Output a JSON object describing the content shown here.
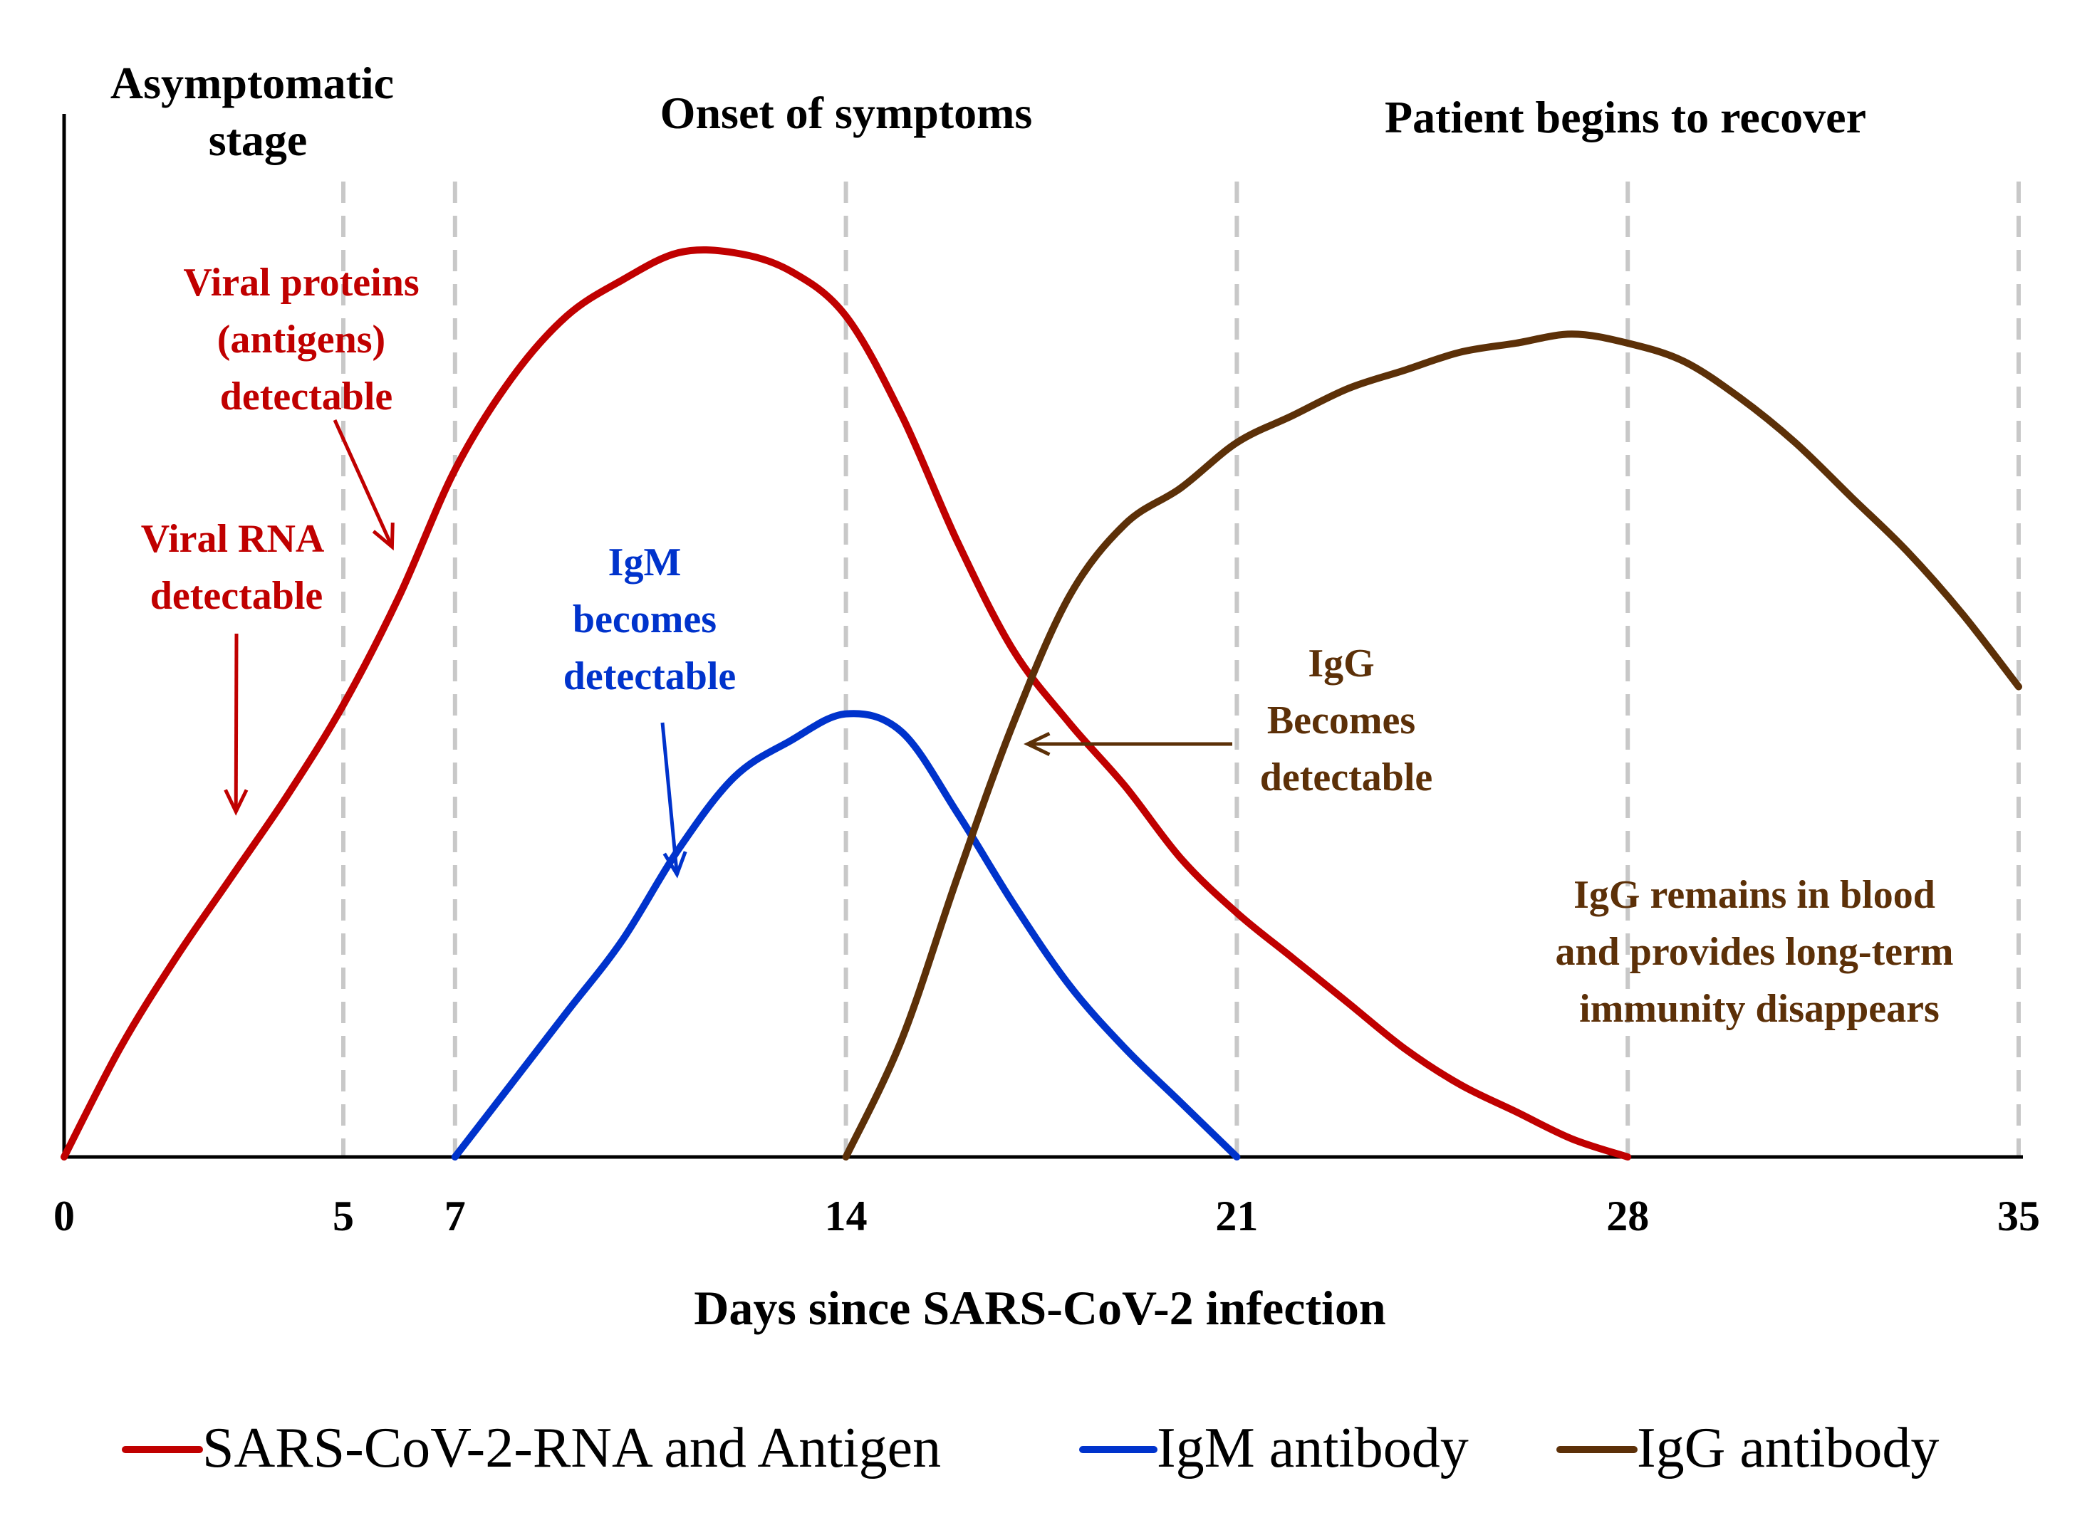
{
  "chart_data": {
    "type": "line",
    "xlabel": "Days since SARS-CoV-2 infection",
    "ylabel": "",
    "xlim": [
      0,
      35
    ],
    "ylim": [
      0,
      100
    ],
    "x_ticks": [
      0,
      5,
      7,
      14,
      21,
      28,
      35
    ],
    "x_tick_labels": [
      "0",
      "5",
      "7",
      "14",
      "21",
      "28",
      "35"
    ],
    "guide_lines_x": [
      5,
      7,
      14,
      21,
      28,
      35
    ],
    "phase_labels": [
      {
        "id": "asymptomatic",
        "lines": [
          "Asymptomatic",
          "stage"
        ]
      },
      {
        "id": "onset",
        "lines": [
          "Onset of symptoms"
        ]
      },
      {
        "id": "recover",
        "lines": [
          "Patient begins to recover"
        ]
      }
    ],
    "series": [
      {
        "id": "rna",
        "name": "SARS-CoV-2-RNA and Antigen",
        "color": "#c00000",
        "points": [
          [
            0,
            0
          ],
          [
            1,
            12
          ],
          [
            2,
            22
          ],
          [
            3,
            31
          ],
          [
            4,
            40
          ],
          [
            5,
            50
          ],
          [
            6,
            62
          ],
          [
            7,
            76
          ],
          [
            8,
            86
          ],
          [
            9,
            93
          ],
          [
            10,
            97
          ],
          [
            11,
            100
          ],
          [
            12,
            100
          ],
          [
            13,
            98
          ],
          [
            14,
            93
          ],
          [
            15,
            82
          ],
          [
            16,
            68
          ],
          [
            17,
            56
          ],
          [
            18,
            48
          ],
          [
            19,
            41
          ],
          [
            20,
            33
          ],
          [
            21,
            27
          ],
          [
            22,
            22
          ],
          [
            23,
            17
          ],
          [
            24,
            12
          ],
          [
            25,
            8
          ],
          [
            26,
            5
          ],
          [
            27,
            2
          ],
          [
            28,
            0
          ]
        ]
      },
      {
        "id": "igm",
        "name": "IgM antibody",
        "color": "#0033cc",
        "points": [
          [
            7,
            0
          ],
          [
            8,
            8
          ],
          [
            9,
            16
          ],
          [
            10,
            24
          ],
          [
            11,
            34
          ],
          [
            12,
            42
          ],
          [
            13,
            46
          ],
          [
            14,
            49
          ],
          [
            15,
            47
          ],
          [
            16,
            38
          ],
          [
            17,
            28
          ],
          [
            18,
            19
          ],
          [
            19,
            12
          ],
          [
            20,
            6
          ],
          [
            21,
            0
          ]
        ]
      },
      {
        "id": "igg",
        "name": "IgG antibody",
        "color": "#5c3008",
        "points": [
          [
            14,
            0
          ],
          [
            15,
            13
          ],
          [
            16,
            31
          ],
          [
            17,
            48
          ],
          [
            18,
            62
          ],
          [
            19,
            70
          ],
          [
            20,
            74
          ],
          [
            21,
            79
          ],
          [
            22,
            82
          ],
          [
            23,
            85
          ],
          [
            24,
            87
          ],
          [
            25,
            89
          ],
          [
            26,
            90
          ],
          [
            27,
            91
          ],
          [
            28,
            90
          ],
          [
            29,
            88
          ],
          [
            30,
            84
          ],
          [
            31,
            79
          ],
          [
            32,
            73
          ],
          [
            33,
            67
          ],
          [
            34,
            60
          ],
          [
            35,
            52
          ]
        ]
      }
    ],
    "annotations": [
      {
        "id": "viral-rna",
        "color": "#c00000",
        "lines": [
          "Viral RNA",
          "detectable"
        ],
        "arrow_to_day": 3
      },
      {
        "id": "viral-proteins",
        "color": "#c00000",
        "lines": [
          "Viral proteins",
          "(antigens)",
          "detectable"
        ],
        "arrow_to_day": 6
      },
      {
        "id": "igm-detect",
        "color": "#0033cc",
        "lines": [
          "IgM",
          "becomes",
          "detectable"
        ],
        "arrow_to_day": 11
      },
      {
        "id": "igg-detect",
        "color": "#5c3008",
        "lines": [
          "IgG",
          "Becomes",
          "detectable"
        ],
        "arrow_to_day": 17
      },
      {
        "id": "igg-remains",
        "color": "#5c3008",
        "lines": [
          "IgG remains in blood",
          "and provides long-term",
          "immunity disappears"
        ]
      }
    ]
  }
}
